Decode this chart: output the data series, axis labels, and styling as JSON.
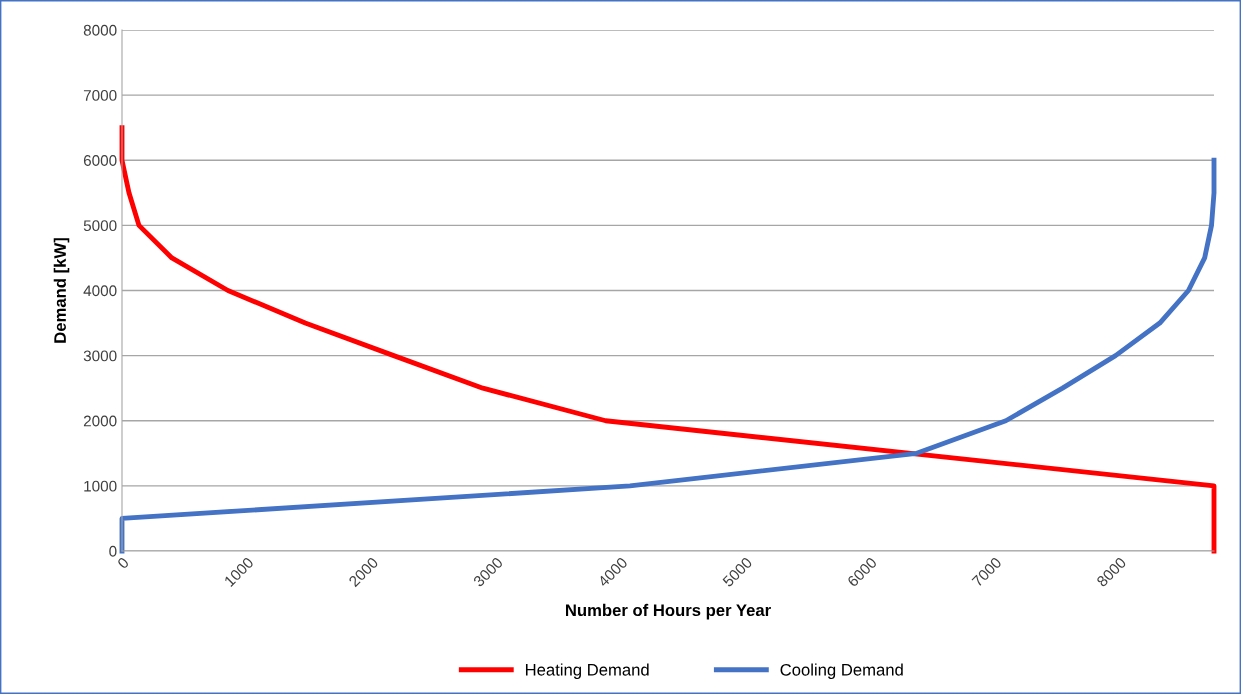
{
  "chart_data": {
    "type": "line",
    "xlabel": "Number of Hours per Year",
    "ylabel": "Demand [kW]",
    "xlim": [
      0,
      8760
    ],
    "xticks": [
      0,
      1000,
      2000,
      3000,
      4000,
      5000,
      6000,
      7000,
      8000
    ],
    "ylim": [
      0,
      8000
    ],
    "yticks": [
      0,
      1000,
      2000,
      3000,
      4000,
      5000,
      6000,
      7000,
      8000
    ],
    "grid": "y",
    "legend": "bottom",
    "marker": "none",
    "line_style": "solid",
    "series": [
      {
        "name": "Heating Demand",
        "color": "#ff0000",
        "x": [
          0,
          0,
          56,
          136,
          400,
          850,
          1470,
          2180,
          2895,
          3880,
          8760,
          8760
        ],
        "values": [
          6500,
          6000,
          5500,
          5000,
          4500,
          4000,
          3500,
          3000,
          2500,
          2000,
          1000,
          0
        ]
      },
      {
        "name": "Cooling Demand",
        "color": "#4472c4",
        "x": [
          0,
          0,
          4075,
          6375,
          7090,
          7545,
          7970,
          8325,
          8555,
          8685,
          8740,
          8760,
          8760
        ],
        "values": [
          0,
          500,
          1000,
          1500,
          2000,
          2500,
          3000,
          3500,
          4000,
          4500,
          5000,
          5500,
          6000
        ]
      }
    ]
  }
}
